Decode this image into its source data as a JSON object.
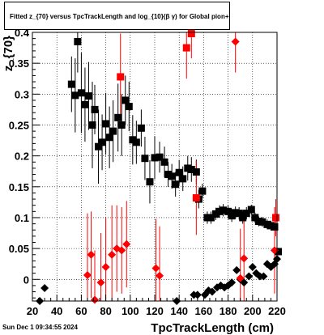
{
  "header": {
    "title": "Fitted  z_{70}  versus TpcTrackLength and log_{10}(β γ) for Global pion+",
    "timestamp": "Sun Dec  1 09:34:55 2024"
  },
  "colors": {
    "black_series": "#000000",
    "red_series": "#ff0000",
    "frame": "#000000",
    "grid": "#000000"
  },
  "chart_data": {
    "type": "scatter",
    "title": "Fitted  z_{70}  versus TpcTrackLength and log_{10}(β γ) for Global pion+",
    "xlabel": "TpcTrackLength (cm)",
    "ylabel": "z_{70}",
    "xlim": [
      20,
      220
    ],
    "ylim": [
      -0.035,
      0.4
    ],
    "xticks": [
      20,
      40,
      60,
      80,
      100,
      120,
      140,
      160,
      180,
      200,
      220
    ],
    "xtick_labels": [
      "20",
      "40",
      "60",
      "80",
      "100",
      "120",
      "140",
      "160",
      "180",
      "200",
      "220"
    ],
    "yticks": [
      0,
      0.05,
      0.1,
      0.15,
      0.2,
      0.25,
      0.3,
      0.35,
      0.4
    ],
    "ytick_labels": [
      "0",
      "0.05",
      "0.1",
      "0.15",
      "0.2",
      "0.25",
      "0.3",
      "0.35",
      "0.4"
    ],
    "grid": true,
    "series": [
      {
        "color": "#000000",
        "marker": "square",
        "points": [
          {
            "x": 52,
            "y": 0.316,
            "err": 0.045
          },
          {
            "x": 55,
            "y": 0.298,
            "err": 0.06
          },
          {
            "x": 57,
            "y": 0.385,
            "err": 0.05
          },
          {
            "x": 60,
            "y": 0.302,
            "err": 0.065
          },
          {
            "x": 63,
            "y": 0.283,
            "err": 0.06
          },
          {
            "x": 66,
            "y": 0.297,
            "err": 0.055
          },
          {
            "x": 69,
            "y": 0.25,
            "err": 0.07
          },
          {
            "x": 71,
            "y": 0.275,
            "err": 0.04
          },
          {
            "x": 74,
            "y": 0.215,
            "err": 0.06
          },
          {
            "x": 77,
            "y": 0.222,
            "err": 0.045
          },
          {
            "x": 80,
            "y": 0.252,
            "err": 0.05
          },
          {
            "x": 83,
            "y": 0.23,
            "err": 0.05
          },
          {
            "x": 86,
            "y": 0.24,
            "err": 0.05
          },
          {
            "x": 90,
            "y": 0.262,
            "err": 0.055
          },
          {
            "x": 93,
            "y": 0.25,
            "err": 0.05
          },
          {
            "x": 96,
            "y": 0.29,
            "err": 0.04
          },
          {
            "x": 99,
            "y": 0.28,
            "err": 0.04
          },
          {
            "x": 102,
            "y": 0.226,
            "err": 0.04
          },
          {
            "x": 105,
            "y": 0.222,
            "err": 0.035
          },
          {
            "x": 109,
            "y": 0.245,
            "err": 0.03
          },
          {
            "x": 112,
            "y": 0.196,
            "err": 0.035
          },
          {
            "x": 116,
            "y": 0.158,
            "err": 0.035
          },
          {
            "x": 120,
            "y": 0.197,
            "err": 0.035
          },
          {
            "x": 124,
            "y": 0.198,
            "err": 0.025
          },
          {
            "x": 128,
            "y": 0.19,
            "err": 0.025
          },
          {
            "x": 131,
            "y": 0.17,
            "err": 0.02
          },
          {
            "x": 134,
            "y": 0.167,
            "err": 0.02
          },
          {
            "x": 137,
            "y": 0.154,
            "err": 0.02
          },
          {
            "x": 140,
            "y": 0.173,
            "err": 0.02
          },
          {
            "x": 143,
            "y": 0.163,
            "err": 0.02
          },
          {
            "x": 147,
            "y": 0.18,
            "err": 0.02
          },
          {
            "x": 150,
            "y": 0.178,
            "err": 0.02
          },
          {
            "x": 154,
            "y": 0.174,
            "err": 0.02
          },
          {
            "x": 156,
            "y": 0.13,
            "err": 0.015
          },
          {
            "x": 159,
            "y": 0.143,
            "err": 0.012
          },
          {
            "x": 163,
            "y": 0.1,
            "err": 0.01
          },
          {
            "x": 166,
            "y": 0.1,
            "err": 0.01
          },
          {
            "x": 170,
            "y": 0.106,
            "err": 0.01
          },
          {
            "x": 173,
            "y": 0.11,
            "err": 0.01
          },
          {
            "x": 176,
            "y": 0.112,
            "err": 0.01
          },
          {
            "x": 180,
            "y": 0.11,
            "err": 0.01
          },
          {
            "x": 183,
            "y": 0.103,
            "err": 0.01
          },
          {
            "x": 186,
            "y": 0.108,
            "err": 0.01
          },
          {
            "x": 189,
            "y": 0.107,
            "err": 0.01
          },
          {
            "x": 192,
            "y": 0.1,
            "err": 0.01
          },
          {
            "x": 195,
            "y": 0.107,
            "err": 0.01
          },
          {
            "x": 199,
            "y": 0.113,
            "err": 0.008
          },
          {
            "x": 202,
            "y": 0.1,
            "err": 0.008
          },
          {
            "x": 205,
            "y": 0.094,
            "err": 0.008
          },
          {
            "x": 208,
            "y": 0.093,
            "err": 0.008
          },
          {
            "x": 212,
            "y": 0.089,
            "err": 0.008
          },
          {
            "x": 215,
            "y": 0.087,
            "err": 0.008
          },
          {
            "x": 218,
            "y": 0.085,
            "err": 0.008
          },
          {
            "x": 221,
            "y": 0.045,
            "err": 0.006
          }
        ]
      },
      {
        "color": "#000000",
        "marker": "diamond",
        "points": [
          {
            "x": 26,
            "y": -0.035
          },
          {
            "x": 30,
            "y": -0.014
          },
          {
            "x": 138,
            "y": -0.035
          },
          {
            "x": 152,
            "y": -0.025
          },
          {
            "x": 155,
            "y": -0.025
          },
          {
            "x": 161,
            "y": -0.025
          },
          {
            "x": 164,
            "y": -0.018
          },
          {
            "x": 167,
            "y": -0.02
          },
          {
            "x": 171,
            "y": -0.013
          },
          {
            "x": 174,
            "y": -0.01
          },
          {
            "x": 177,
            "y": -0.013
          },
          {
            "x": 180,
            "y": -0.01
          },
          {
            "x": 183,
            "y": -0.005
          },
          {
            "x": 187,
            "y": 0.015
          },
          {
            "x": 190,
            "y": 0.0
          },
          {
            "x": 193,
            "y": -0.005
          },
          {
            "x": 197,
            "y": 0.005
          },
          {
            "x": 200,
            "y": 0.02
          },
          {
            "x": 203,
            "y": 0.01
          },
          {
            "x": 206,
            "y": 0.005
          },
          {
            "x": 209,
            "y": 0.005
          },
          {
            "x": 212,
            "y": 0.025
          },
          {
            "x": 215,
            "y": 0.02
          },
          {
            "x": 218,
            "y": 0.025
          },
          {
            "x": 220,
            "y": 0.033
          }
        ]
      },
      {
        "color": "#ff0000",
        "marker": "square",
        "points": [
          {
            "x": 92,
            "y": 0.328,
            "err": 0.07
          },
          {
            "x": 146,
            "y": 0.375,
            "err": 0.05
          },
          {
            "x": 150,
            "y": 0.398,
            "err": 0.04
          },
          {
            "x": 154,
            "y": 0.132,
            "err": 0.06
          },
          {
            "x": 219,
            "y": 0.1,
            "err": 0.03
          }
        ]
      },
      {
        "color": "#ff0000",
        "marker": "diamond",
        "points": [
          {
            "x": 65,
            "y": 0.007,
            "err": 0.1
          },
          {
            "x": 68,
            "y": 0.04,
            "err": 0.07
          },
          {
            "x": 71,
            "y": -0.033,
            "err": 0.08
          },
          {
            "x": 76,
            "y": -0.005,
            "err": 0.08
          },
          {
            "x": 80,
            "y": 0.02,
            "err": 0.08
          },
          {
            "x": 85,
            "y": 0.04,
            "err": 0.08
          },
          {
            "x": 89,
            "y": 0.05,
            "err": 0.07
          },
          {
            "x": 93,
            "y": 0.047,
            "err": 0.07
          },
          {
            "x": 97,
            "y": 0.057,
            "err": 0.07
          },
          {
            "x": 121,
            "y": 0.018,
            "err": 0.08
          },
          {
            "x": 124,
            "y": 0.006,
            "err": 0.08
          },
          {
            "x": 186,
            "y": 0.385,
            "err": 0.05
          },
          {
            "x": 190,
            "y": 0.002,
            "err": 0.08
          },
          {
            "x": 193,
            "y": 0.034,
            "err": 0.07
          },
          {
            "x": 218,
            "y": 0.047,
            "err": 0.07
          }
        ]
      }
    ]
  }
}
